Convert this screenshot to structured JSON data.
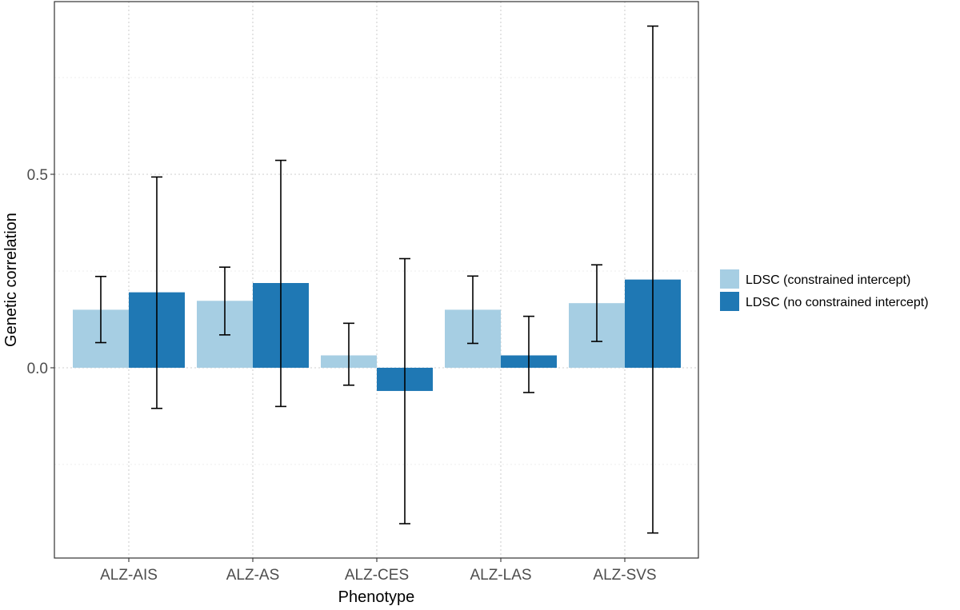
{
  "chart_data": {
    "type": "bar",
    "xlabel": "Phenotype",
    "ylabel": "Genetic correlation",
    "categories": [
      "ALZ-AIS",
      "ALZ-AS",
      "ALZ-CES",
      "ALZ-LAS",
      "ALZ-SVS"
    ],
    "ylim": [
      -0.5,
      0.95
    ],
    "yticks": [
      0.0,
      0.5
    ],
    "ytick_labels": [
      "0.0",
      "0.5"
    ],
    "grid": true,
    "legend_position": "right",
    "series": [
      {
        "name": "LDSC (constrained intercept)",
        "color": "#a6cee3",
        "values": [
          0.15,
          0.173,
          0.032,
          0.15,
          0.167
        ],
        "err_low": [
          0.065,
          0.085,
          -0.045,
          0.063,
          0.068
        ],
        "err_high": [
          0.236,
          0.26,
          0.115,
          0.237,
          0.266
        ]
      },
      {
        "name": "LDSC (no constrained intercept)",
        "color": "#1f78b4",
        "values": [
          0.195,
          0.219,
          -0.06,
          0.032,
          0.228
        ],
        "err_low": [
          -0.105,
          -0.1,
          -0.403,
          -0.064,
          -0.427
        ],
        "err_high": [
          0.493,
          0.536,
          0.282,
          0.133,
          0.883
        ]
      }
    ]
  }
}
